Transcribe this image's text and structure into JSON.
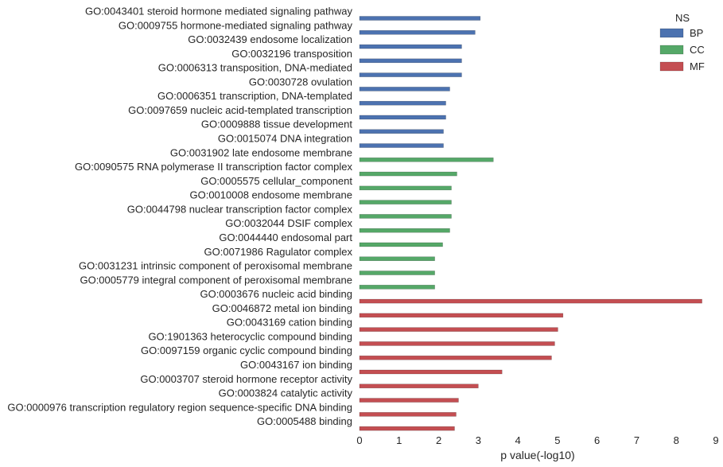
{
  "chart_data": {
    "type": "bar",
    "orientation": "horizontal",
    "xlabel": "p value(-log10)",
    "ylabel": "",
    "xlim": [
      0,
      9
    ],
    "xticks": [
      0,
      1,
      2,
      3,
      4,
      5,
      6,
      7,
      8,
      9
    ],
    "grid": false,
    "legend": {
      "title": "NS",
      "placement": "top-right",
      "entries": [
        {
          "name": "BP",
          "color": "#4c72b0"
        },
        {
          "name": "CC",
          "color": "#55a868"
        },
        {
          "name": "MF",
          "color": "#c44e52"
        }
      ]
    },
    "categories": [
      "GO:0043401 steroid hormone mediated signaling pathway",
      "GO:0009755 hormone-mediated signaling pathway",
      "GO:0032439 endosome localization",
      "GO:0032196 transposition",
      "GO:0006313 transposition, DNA-mediated",
      "GO:0030728 ovulation",
      "GO:0006351 transcription, DNA-templated",
      "GO:0097659 nucleic acid-templated transcription",
      "GO:0009888 tissue development",
      "GO:0015074 DNA integration",
      "GO:0031902 late endosome membrane",
      "GO:0090575 RNA polymerase II transcription factor complex",
      "GO:0005575 cellular_component",
      "GO:0010008 endosome membrane",
      "GO:0044798 nuclear transcription factor complex",
      "GO:0032044 DSIF complex",
      "GO:0044440 endosomal part",
      "GO:0071986 Ragulator complex",
      "GO:0031231 intrinsic component of peroxisomal membrane",
      "GO:0005779 integral component of peroxisomal membrane",
      "GO:0003676 nucleic acid binding",
      "GO:0046872 metal ion binding",
      "GO:0043169 cation binding",
      "GO:1901363 heterocyclic compound binding",
      "GO:0097159 organic cyclic compound binding",
      "GO:0043167 ion binding",
      "GO:0003707 steroid hormone receptor activity",
      "GO:0003824 catalytic activity",
      "GO:0000976 transcription regulatory region sequence-specific DNA binding",
      "GO:0005488 binding"
    ],
    "groups": [
      "BP",
      "BP",
      "BP",
      "BP",
      "BP",
      "BP",
      "BP",
      "BP",
      "BP",
      "BP",
      "CC",
      "CC",
      "CC",
      "CC",
      "CC",
      "CC",
      "CC",
      "CC",
      "CC",
      "CC",
      "MF",
      "MF",
      "MF",
      "MF",
      "MF",
      "MF",
      "MF",
      "MF",
      "MF",
      "MF"
    ],
    "values": [
      3.05,
      2.92,
      2.58,
      2.58,
      2.58,
      2.28,
      2.18,
      2.18,
      2.12,
      2.12,
      3.38,
      2.46,
      2.32,
      2.32,
      2.32,
      2.28,
      2.1,
      1.9,
      1.9,
      1.9,
      8.65,
      5.14,
      5.01,
      4.93,
      4.85,
      3.6,
      3.0,
      2.5,
      2.44,
      2.4
    ]
  }
}
